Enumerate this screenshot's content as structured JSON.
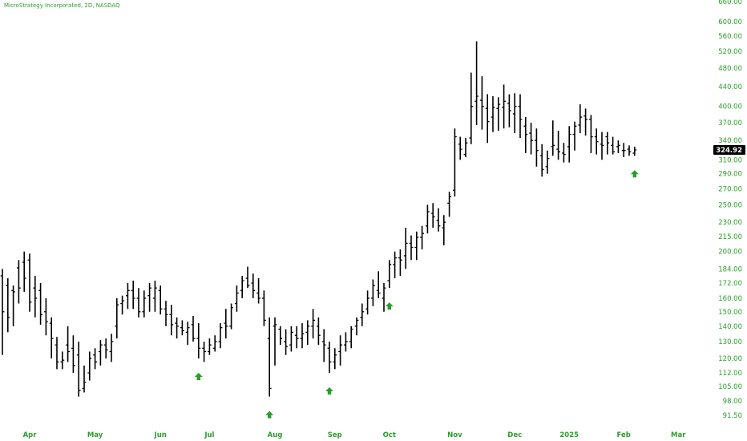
{
  "chart_data": {
    "type": "ohlc",
    "title": "MicroStrategy Incorporated, 2D, NASDAQ",
    "scale": "log",
    "ylim": [
      88,
      665
    ],
    "y_ticks": [
      "660.00",
      "600.00",
      "560.00",
      "520.00",
      "480.00",
      "440.00",
      "400.00",
      "370.00",
      "340.00",
      "310.00",
      "290.00",
      "270.00",
      "250.00",
      "230.00",
      "215.00",
      "200.00",
      "184.00",
      "172.00",
      "160.00",
      "150.00",
      "140.00",
      "130.00",
      "120.00",
      "112.00",
      "105.00",
      "98.00",
      "91.50"
    ],
    "x_ticks": [
      "Apr",
      "May",
      "Jun",
      "Jul",
      "Aug",
      "Sep",
      "Oct",
      "Nov",
      "Dec",
      "2025",
      "Feb",
      "Mar"
    ],
    "last_price": "324.92",
    "colors": {
      "bars": "#000000",
      "text": "#2a9d2a",
      "arrow": "#2a9d2a",
      "price_label_bg": "#000000"
    },
    "grid": false,
    "bars": [
      [
        178,
        184,
        122,
        150
      ],
      [
        170,
        176,
        136,
        146
      ],
      [
        166,
        170,
        140,
        165
      ],
      [
        185,
        192,
        156,
        168
      ],
      [
        190,
        200,
        165,
        176
      ],
      [
        192,
        198,
        150,
        157
      ],
      [
        168,
        178,
        146,
        160
      ],
      [
        166,
        172,
        141,
        148
      ],
      [
        150,
        160,
        134,
        143
      ],
      [
        142,
        146,
        120,
        132
      ],
      [
        128,
        133,
        114,
        118
      ],
      [
        118,
        124,
        114,
        119
      ],
      [
        128,
        140,
        118,
        124
      ],
      [
        126,
        134,
        112,
        116
      ],
      [
        122,
        130,
        100,
        103
      ],
      [
        104,
        116,
        102,
        107
      ],
      [
        112,
        124,
        108,
        120
      ],
      [
        122,
        126,
        114,
        118
      ],
      [
        124,
        131,
        116,
        128
      ],
      [
        128,
        132,
        120,
        125
      ],
      [
        124,
        135,
        118,
        130
      ],
      [
        140,
        160,
        132,
        155
      ],
      [
        156,
        162,
        148,
        158
      ],
      [
        162,
        172,
        152,
        166
      ],
      [
        166,
        174,
        152,
        160
      ],
      [
        160,
        168,
        146,
        150
      ],
      [
        150,
        166,
        146,
        160
      ],
      [
        162,
        172,
        150,
        168
      ],
      [
        160,
        174,
        150,
        168
      ],
      [
        166,
        170,
        148,
        152
      ],
      [
        152,
        158,
        140,
        148
      ],
      [
        148,
        155,
        134,
        141
      ],
      [
        142,
        146,
        132,
        140
      ],
      [
        139,
        144,
        134,
        137
      ],
      [
        136,
        143,
        128,
        139
      ],
      [
        141,
        147,
        130,
        132
      ],
      [
        132,
        142,
        120,
        126
      ],
      [
        126,
        130,
        118,
        124
      ],
      [
        124,
        132,
        122,
        128
      ],
      [
        126,
        134,
        124,
        130
      ],
      [
        130,
        142,
        126,
        139
      ],
      [
        142,
        152,
        132,
        140
      ],
      [
        140,
        156,
        138,
        153
      ],
      [
        156,
        170,
        150,
        164
      ],
      [
        166,
        178,
        160,
        174
      ],
      [
        176,
        186,
        168,
        170
      ],
      [
        172,
        180,
        160,
        166
      ],
      [
        164,
        176,
        156,
        160
      ],
      [
        160,
        166,
        140,
        144
      ],
      [
        132,
        146,
        100,
        104
      ],
      [
        140,
        146,
        116,
        141
      ],
      [
        138,
        140,
        128,
        132
      ],
      [
        130,
        138,
        122,
        127
      ],
      [
        128,
        140,
        124,
        136
      ],
      [
        134,
        140,
        126,
        132
      ],
      [
        132,
        142,
        126,
        135
      ],
      [
        136,
        144,
        128,
        140
      ],
      [
        140,
        152,
        132,
        144
      ],
      [
        140,
        146,
        128,
        134
      ],
      [
        130,
        138,
        118,
        128
      ],
      [
        126,
        130,
        112,
        118
      ],
      [
        118,
        126,
        114,
        122
      ],
      [
        124,
        134,
        116,
        128
      ],
      [
        128,
        136,
        124,
        130
      ],
      [
        130,
        140,
        126,
        138
      ],
      [
        140,
        146,
        134,
        144
      ],
      [
        146,
        156,
        140,
        150
      ],
      [
        152,
        166,
        148,
        160
      ],
      [
        160,
        175,
        154,
        170
      ],
      [
        166,
        182,
        160,
        164
      ],
      [
        160,
        172,
        150,
        168
      ],
      [
        174,
        192,
        168,
        188
      ],
      [
        188,
        200,
        176,
        194
      ],
      [
        194,
        202,
        178,
        192
      ],
      [
        196,
        224,
        184,
        208
      ],
      [
        208,
        216,
        192,
        204
      ],
      [
        204,
        220,
        192,
        214
      ],
      [
        214,
        226,
        202,
        218
      ],
      [
        226,
        250,
        218,
        242
      ],
      [
        240,
        252,
        224,
        236
      ],
      [
        232,
        246,
        220,
        226
      ],
      [
        224,
        238,
        206,
        230
      ],
      [
        252,
        266,
        236,
        260
      ],
      [
        268,
        360,
        260,
        346
      ],
      [
        334,
        346,
        310,
        326
      ],
      [
        318,
        344,
        314,
        336
      ],
      [
        344,
        470,
        334,
        400
      ],
      [
        410,
        546,
        366,
        420
      ],
      [
        412,
        462,
        358,
        400
      ],
      [
        396,
        424,
        336,
        372
      ],
      [
        380,
        420,
        354,
        398
      ],
      [
        396,
        418,
        356,
        404
      ],
      [
        398,
        444,
        360,
        410
      ],
      [
        406,
        424,
        362,
        392
      ],
      [
        386,
        426,
        352,
        400
      ],
      [
        400,
        424,
        344,
        376
      ],
      [
        364,
        380,
        320,
        350
      ],
      [
        352,
        370,
        318,
        340
      ],
      [
        340,
        360,
        300,
        324
      ],
      [
        316,
        334,
        286,
        296
      ],
      [
        300,
        324,
        290,
        312
      ],
      [
        330,
        374,
        316,
        332
      ],
      [
        326,
        356,
        310,
        322
      ],
      [
        320,
        336,
        306,
        318
      ],
      [
        330,
        364,
        306,
        350
      ],
      [
        350,
        372,
        324,
        364
      ],
      [
        366,
        404,
        352,
        380
      ],
      [
        382,
        396,
        348,
        376
      ],
      [
        376,
        384,
        320,
        346
      ],
      [
        346,
        360,
        318,
        338
      ],
      [
        334,
        354,
        310,
        332
      ],
      [
        346,
        354,
        318,
        336
      ],
      [
        332,
        346,
        318,
        322
      ],
      [
        330,
        340,
        320,
        332
      ],
      [
        324,
        336,
        314,
        324
      ],
      [
        326,
        332,
        316,
        322
      ],
      [
        320,
        330,
        316,
        324.92
      ]
    ],
    "signals": [
      {
        "bar": 36,
        "type": "buy-arrow"
      },
      {
        "bar": 49,
        "type": "buy-arrow"
      },
      {
        "bar": 60,
        "type": "buy-arrow"
      },
      {
        "bar": 71,
        "type": "buy-arrow"
      },
      {
        "bar": 116,
        "type": "buy-arrow"
      }
    ]
  }
}
